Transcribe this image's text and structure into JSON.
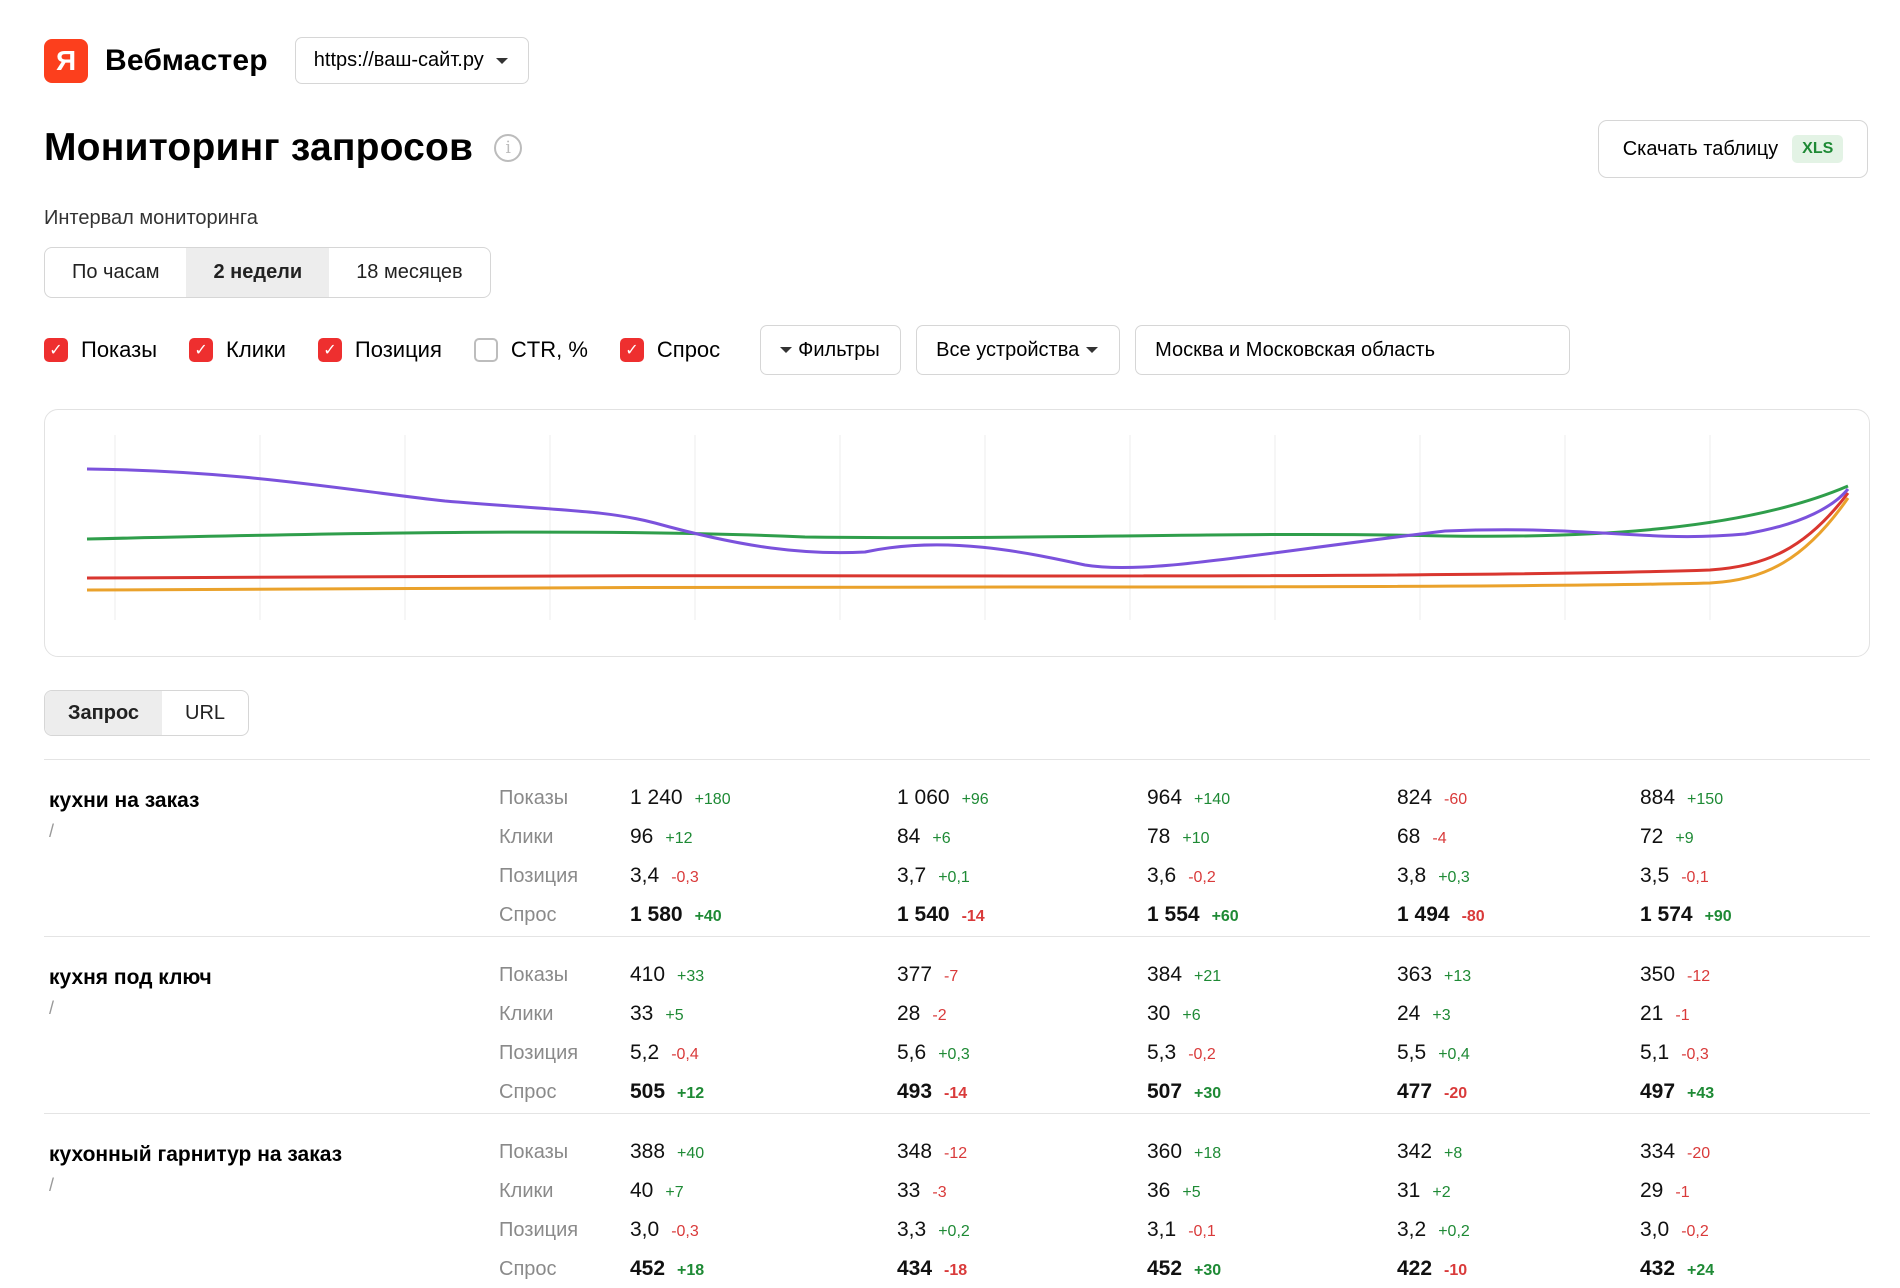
{
  "brand": {
    "logo_letter": "Я",
    "name": "Вебмастер"
  },
  "site": {
    "selected": "https://ваш-сайт.ру"
  },
  "page": {
    "title": "Мониторинг запросов"
  },
  "download": {
    "label": "Скачать таблицу",
    "badge": "XLS"
  },
  "interval": {
    "label": "Интервал мониторинга",
    "options": [
      "По часам",
      "2 недели",
      "18 месяцев"
    ],
    "selected": "2 недели"
  },
  "series_toggles": [
    {
      "label": "Показы",
      "checked": true
    },
    {
      "label": "Клики",
      "checked": true
    },
    {
      "label": "Позиция",
      "checked": true
    },
    {
      "label": "CTR, %",
      "checked": false
    },
    {
      "label": "Спрос",
      "checked": true
    }
  ],
  "filters": {
    "filters_label": "Фильтры",
    "devices_label": "Все устройства",
    "region_value": "Москва и Московская область"
  },
  "colors": {
    "purple": "#7b52dc",
    "green": "#2f9e4b",
    "red": "#d9362f",
    "orange": "#eaa22c",
    "accent_red": "#ee2f2f"
  },
  "tabs": {
    "items": [
      "Запрос",
      "URL"
    ],
    "selected": "Запрос"
  },
  "rows": [
    {
      "query": "кухни на заказ",
      "url": "/",
      "metrics": [
        {
          "label": "Показы",
          "cells": [
            [
              "1 240",
              "+180"
            ],
            [
              "1 060",
              "+96"
            ],
            [
              "964",
              "+140"
            ],
            [
              "824",
              "-60"
            ],
            [
              "884",
              "+150"
            ]
          ]
        },
        {
          "label": "Клики",
          "cells": [
            [
              "96",
              "+12"
            ],
            [
              "84",
              "+6"
            ],
            [
              "78",
              "+10"
            ],
            [
              "68",
              "-4"
            ],
            [
              "72",
              "+9"
            ]
          ]
        },
        {
          "label": "Позиция",
          "cells": [
            [
              "3,4",
              "-0,3"
            ],
            [
              "3,7",
              "+0,1"
            ],
            [
              "3,6",
              "-0,2"
            ],
            [
              "3,8",
              "+0,3"
            ],
            [
              "3,5",
              "-0,1"
            ]
          ]
        },
        {
          "label": "Спрос",
          "cells": [
            [
              "1 580",
              "+40"
            ],
            [
              "1 540",
              "-14"
            ],
            [
              "1 554",
              "+60"
            ],
            [
              "1 494",
              "-80"
            ],
            [
              "1 574",
              "+90"
            ]
          ]
        }
      ]
    },
    {
      "query": "кухня под ключ",
      "url": "/",
      "metrics": [
        {
          "label": "Показы",
          "cells": [
            [
              "410",
              "+33"
            ],
            [
              "377",
              "-7"
            ],
            [
              "384",
              "+21"
            ],
            [
              "363",
              "+13"
            ],
            [
              "350",
              "-12"
            ]
          ]
        },
        {
          "label": "Клики",
          "cells": [
            [
              "33",
              "+5"
            ],
            [
              "28",
              "-2"
            ],
            [
              "30",
              "+6"
            ],
            [
              "24",
              "+3"
            ],
            [
              "21",
              "-1"
            ]
          ]
        },
        {
          "label": "Позиция",
          "cells": [
            [
              "5,2",
              "-0,4"
            ],
            [
              "5,6",
              "+0,3"
            ],
            [
              "5,3",
              "-0,2"
            ],
            [
              "5,5",
              "+0,4"
            ],
            [
              "5,1",
              "-0,3"
            ]
          ]
        },
        {
          "label": "Спрос",
          "cells": [
            [
              "505",
              "+12"
            ],
            [
              "493",
              "-14"
            ],
            [
              "507",
              "+30"
            ],
            [
              "477",
              "-20"
            ],
            [
              "497",
              "+43"
            ]
          ]
        }
      ]
    },
    {
      "query": "кухонный гарнитур на заказ",
      "url": "/",
      "metrics": [
        {
          "label": "Показы",
          "cells": [
            [
              "388",
              "+40"
            ],
            [
              "348",
              "-12"
            ],
            [
              "360",
              "+18"
            ],
            [
              "342",
              "+8"
            ],
            [
              "334",
              "-20"
            ]
          ]
        },
        {
          "label": "Клики",
          "cells": [
            [
              "40",
              "+7"
            ],
            [
              "33",
              "-3"
            ],
            [
              "36",
              "+5"
            ],
            [
              "31",
              "+2"
            ],
            [
              "29",
              "-1"
            ]
          ]
        },
        {
          "label": "Позиция",
          "cells": [
            [
              "3,0",
              "-0,3"
            ],
            [
              "3,3",
              "+0,2"
            ],
            [
              "3,1",
              "-0,1"
            ],
            [
              "3,2",
              "+0,2"
            ],
            [
              "3,0",
              "-0,2"
            ]
          ]
        },
        {
          "label": "Спрос",
          "cells": [
            [
              "452",
              "+18"
            ],
            [
              "434",
              "-18"
            ],
            [
              "452",
              "+30"
            ],
            [
              "422",
              "-10"
            ],
            [
              "432",
              "+24"
            ]
          ]
        }
      ]
    }
  ]
}
